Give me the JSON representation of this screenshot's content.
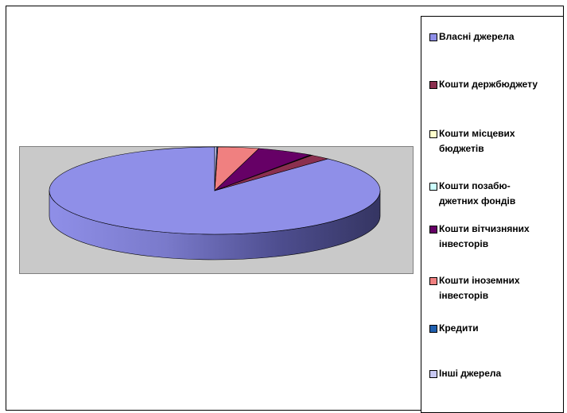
{
  "chart_data": {
    "type": "pie",
    "title": "",
    "categories": [
      "Власні джерела",
      "Кошти держбюджету",
      "Кошти місцевих бюджетів",
      "Кошти позабю-джетних фондів",
      "Кошти вітчизняних інвесторів",
      "Кошти іноземних інвесторів",
      "Кредити",
      "Інші джерела"
    ],
    "values": [
      88.0,
      2.0,
      0.1,
      0.1,
      5.5,
      4.0,
      0.1,
      0.2
    ],
    "colors": [
      "#8f8fe8",
      "#8b2f4f",
      "#ffffcc",
      "#ccffff",
      "#660066",
      "#f08080",
      "#1f5fae",
      "#c9c9f2"
    ],
    "legend": {
      "position": "right",
      "lines": [
        [
          "Власні джерела"
        ],
        [
          "Кошти держбюджету"
        ],
        [
          "Кошти місцевих",
          "бюджетів"
        ],
        [
          "Кошти позабю-",
          "джетних фондів"
        ],
        [
          "Кошти вітчизняних",
          "інвесторів"
        ],
        [
          "Кошти іноземних",
          "інвесторів"
        ],
        [
          "Кредити"
        ],
        [
          "Інші джерела"
        ]
      ]
    },
    "style": "3d-exploded-pie"
  }
}
